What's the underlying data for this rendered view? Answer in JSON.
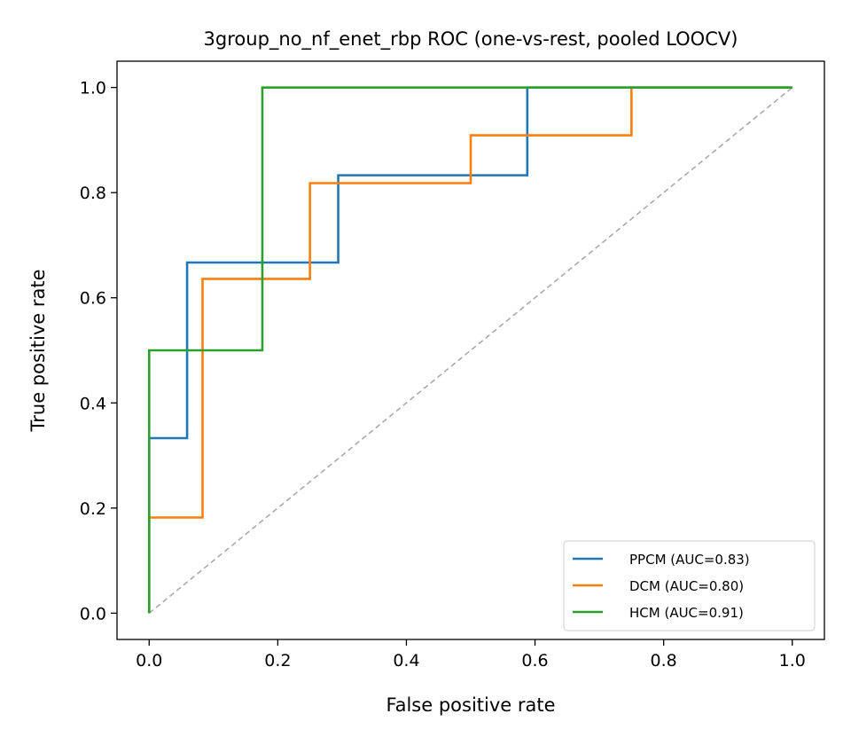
{
  "chart_data": {
    "type": "line",
    "title": "3group_no_nf_enet_rbp ROC (one-vs-rest, pooled LOOCV)",
    "xlabel": "False positive rate",
    "ylabel": "True positive rate",
    "xlim": [
      -0.05,
      1.05
    ],
    "ylim": [
      -0.05,
      1.05
    ],
    "x_ticks": [
      0.0,
      0.2,
      0.4,
      0.6,
      0.8,
      1.0
    ],
    "y_ticks": [
      0.0,
      0.2,
      0.4,
      0.6,
      0.8,
      1.0
    ],
    "x_tick_labels": [
      "0.0",
      "0.2",
      "0.4",
      "0.6",
      "0.8",
      "1.0"
    ],
    "y_tick_labels": [
      "0.0",
      "0.2",
      "0.4",
      "0.6",
      "0.8",
      "1.0"
    ],
    "grid": false,
    "legend_position": "lower-right",
    "series": [
      {
        "name": "PPCM (AUC=0.83)",
        "color": "#1f77b4",
        "x": [
          0,
          0,
          0.059,
          0.059,
          0.294,
          0.294,
          0.588,
          0.588,
          1.0
        ],
        "y": [
          0,
          0.333,
          0.333,
          0.667,
          0.667,
          0.833,
          0.833,
          1.0,
          1.0
        ]
      },
      {
        "name": "DCM (AUC=0.80)",
        "color": "#ff7f0e",
        "x": [
          0,
          0,
          0.083,
          0.083,
          0.25,
          0.25,
          0.5,
          0.5,
          0.75,
          0.75,
          1.0
        ],
        "y": [
          0,
          0.182,
          0.182,
          0.636,
          0.636,
          0.818,
          0.818,
          0.909,
          0.909,
          1.0,
          1.0
        ]
      },
      {
        "name": "HCM (AUC=0.91)",
        "color": "#2ca02c",
        "x": [
          0,
          0,
          0.176,
          0.176,
          1.0
        ],
        "y": [
          0,
          0.5,
          0.5,
          1.0,
          1.0
        ]
      }
    ],
    "reference_line": {
      "x": [
        0,
        1
      ],
      "y": [
        0,
        1
      ],
      "color": "#aaaaaa",
      "style": "dashed"
    }
  }
}
